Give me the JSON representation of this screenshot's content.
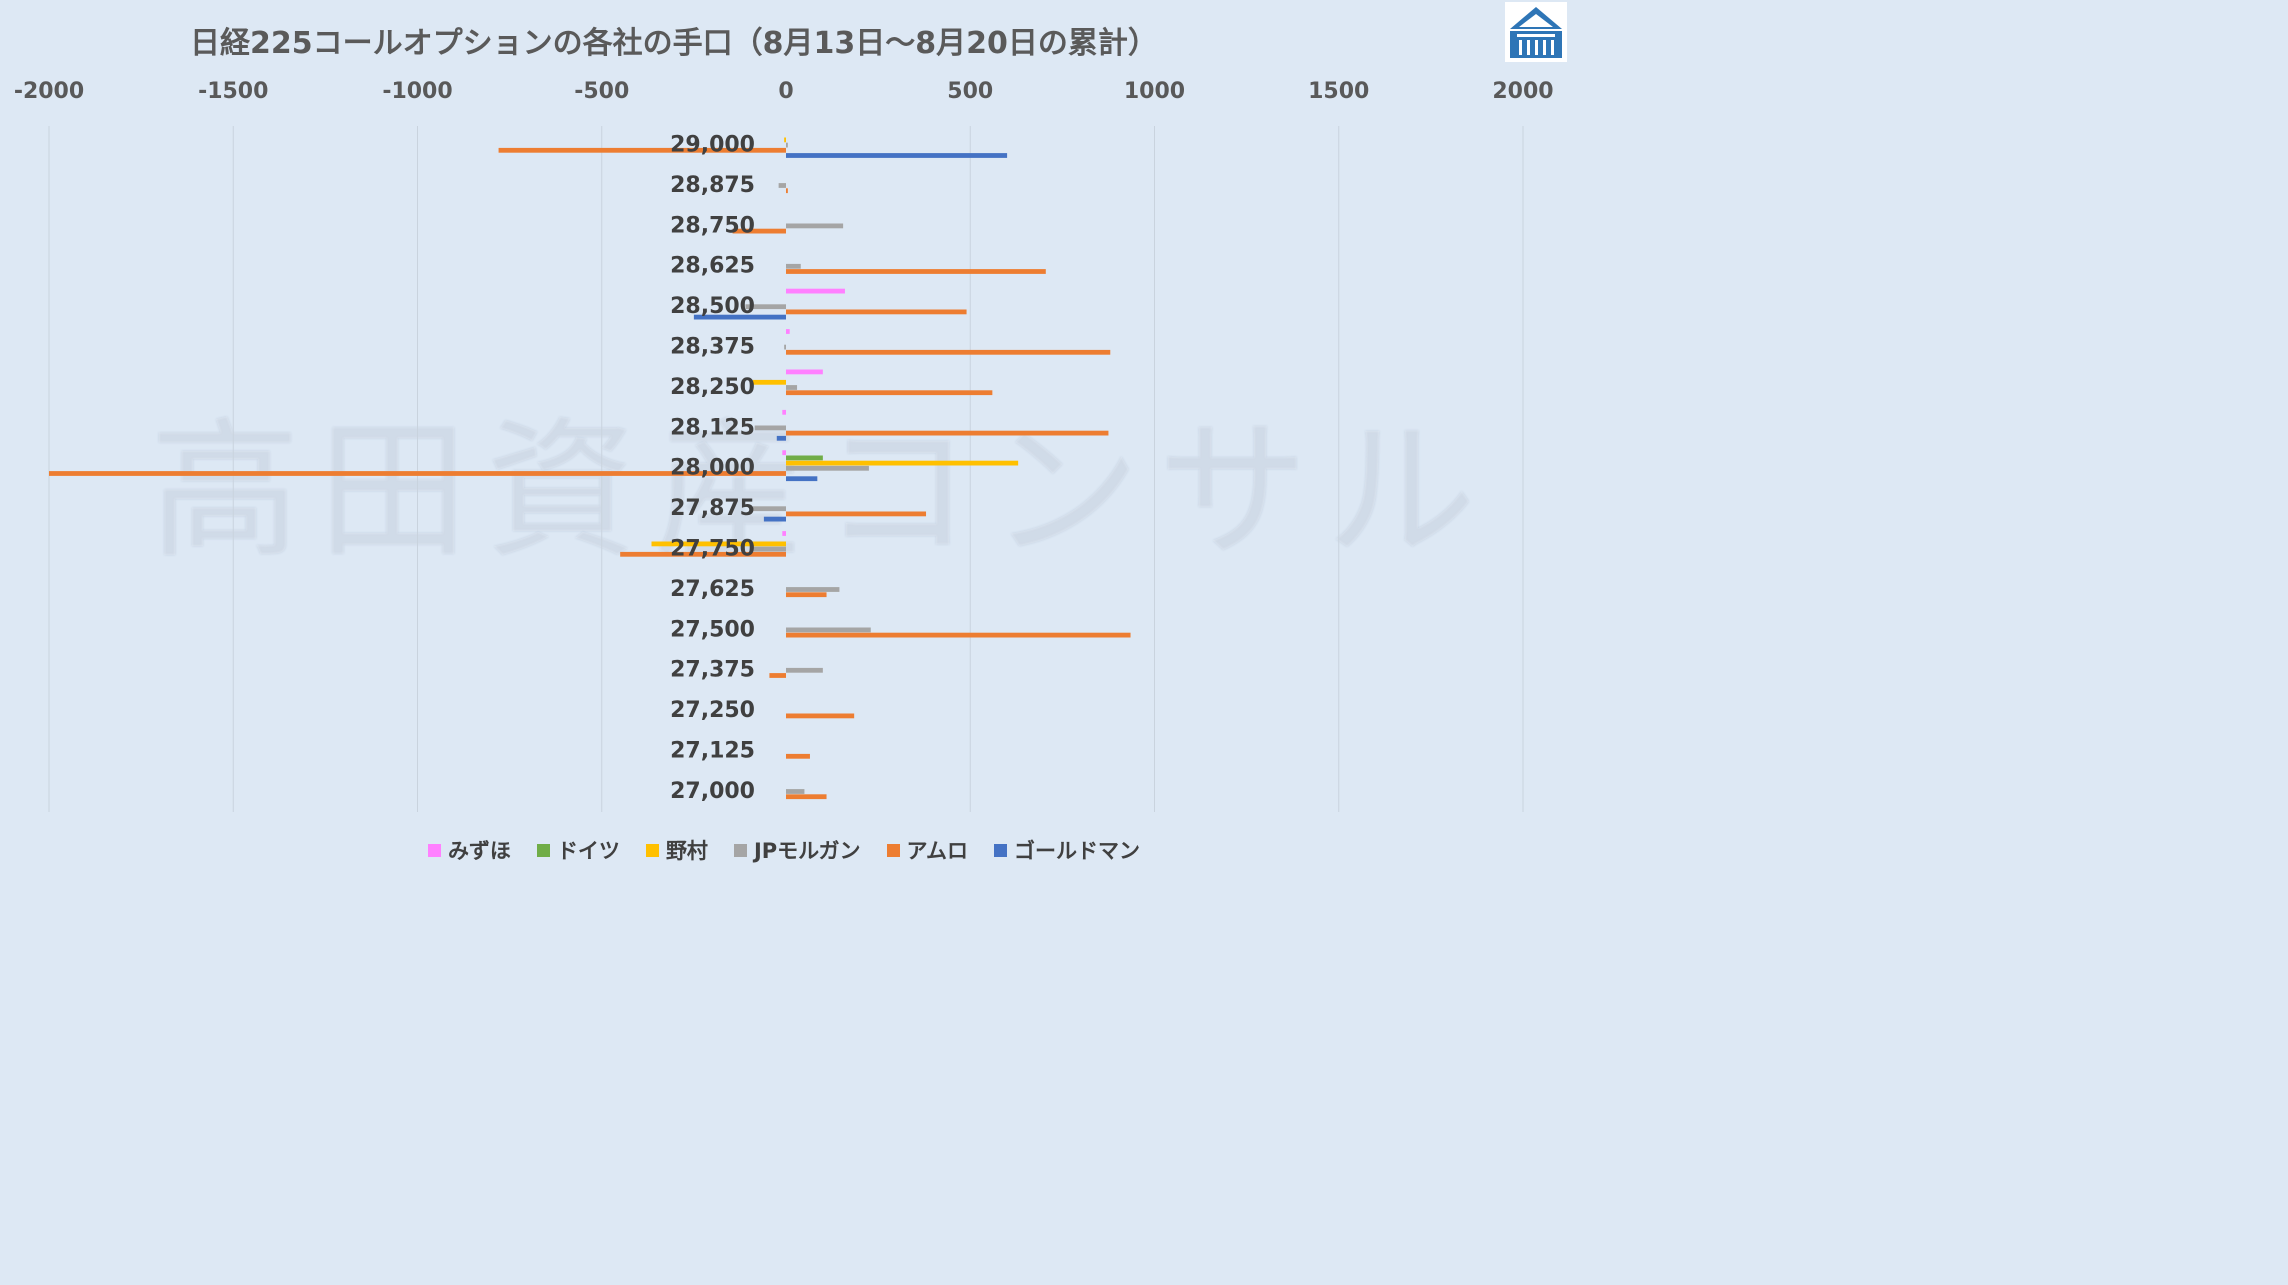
{
  "chart_data": {
    "type": "bar",
    "orientation": "horizontal",
    "title": "日経225コールオプションの各社の手口（8月13日〜8月20日の累計）",
    "xlim": [
      -2000,
      2000
    ],
    "xticks": [
      -2000,
      -1500,
      -1000,
      -500,
      0,
      500,
      1000,
      1500,
      2000
    ],
    "xtick_labels": [
      "-2000",
      "-1500",
      "-1000",
      "-500",
      "0",
      "500",
      "1000",
      "1500",
      "2000"
    ],
    "grid": true,
    "legend_position": "bottom",
    "categories": [
      "29,000",
      "28,875",
      "28,750",
      "28,625",
      "28,500",
      "28,375",
      "28,250",
      "28,125",
      "28,000",
      "27,875",
      "27,750",
      "27,625",
      "27,500",
      "27,375",
      "27,250",
      "27,125",
      "27,000"
    ],
    "series": [
      {
        "name": "みずほ",
        "color": "#ff80ff",
        "values": [
          0,
          0,
          0,
          0,
          160,
          10,
          100,
          -10,
          -10,
          0,
          -10,
          0,
          0,
          0,
          0,
          0,
          0
        ]
      },
      {
        "name": "ドイツ",
        "color": "#70ad47",
        "values": [
          0,
          0,
          0,
          0,
          0,
          0,
          0,
          0,
          100,
          0,
          0,
          0,
          0,
          0,
          0,
          0,
          0
        ]
      },
      {
        "name": "野村",
        "color": "#ffc000",
        "values": [
          -5,
          0,
          0,
          0,
          0,
          0,
          -90,
          0,
          630,
          0,
          -365,
          0,
          0,
          0,
          0,
          0,
          0
        ]
      },
      {
        "name": "JPモルガン",
        "color": "#a5a5a5",
        "values": [
          5,
          -20,
          155,
          40,
          -110,
          -5,
          30,
          -85,
          225,
          -90,
          -95,
          145,
          230,
          100,
          0,
          0,
          50
        ]
      },
      {
        "name": "アムロ",
        "color": "#ed7d31",
        "values": [
          -780,
          5,
          -145,
          705,
          490,
          880,
          560,
          875,
          -2000,
          380,
          -450,
          110,
          935,
          -45,
          185,
          65,
          110
        ]
      },
      {
        "name": "ゴールドマン",
        "color": "#4472c4",
        "values": [
          600,
          0,
          0,
          0,
          -250,
          0,
          0,
          -25,
          85,
          -60,
          0,
          0,
          0,
          0,
          0,
          0,
          0
        ]
      }
    ]
  },
  "watermark": "高田資産コンサル",
  "logo": {
    "icon": "building-icon",
    "color": "#2e75b6"
  }
}
